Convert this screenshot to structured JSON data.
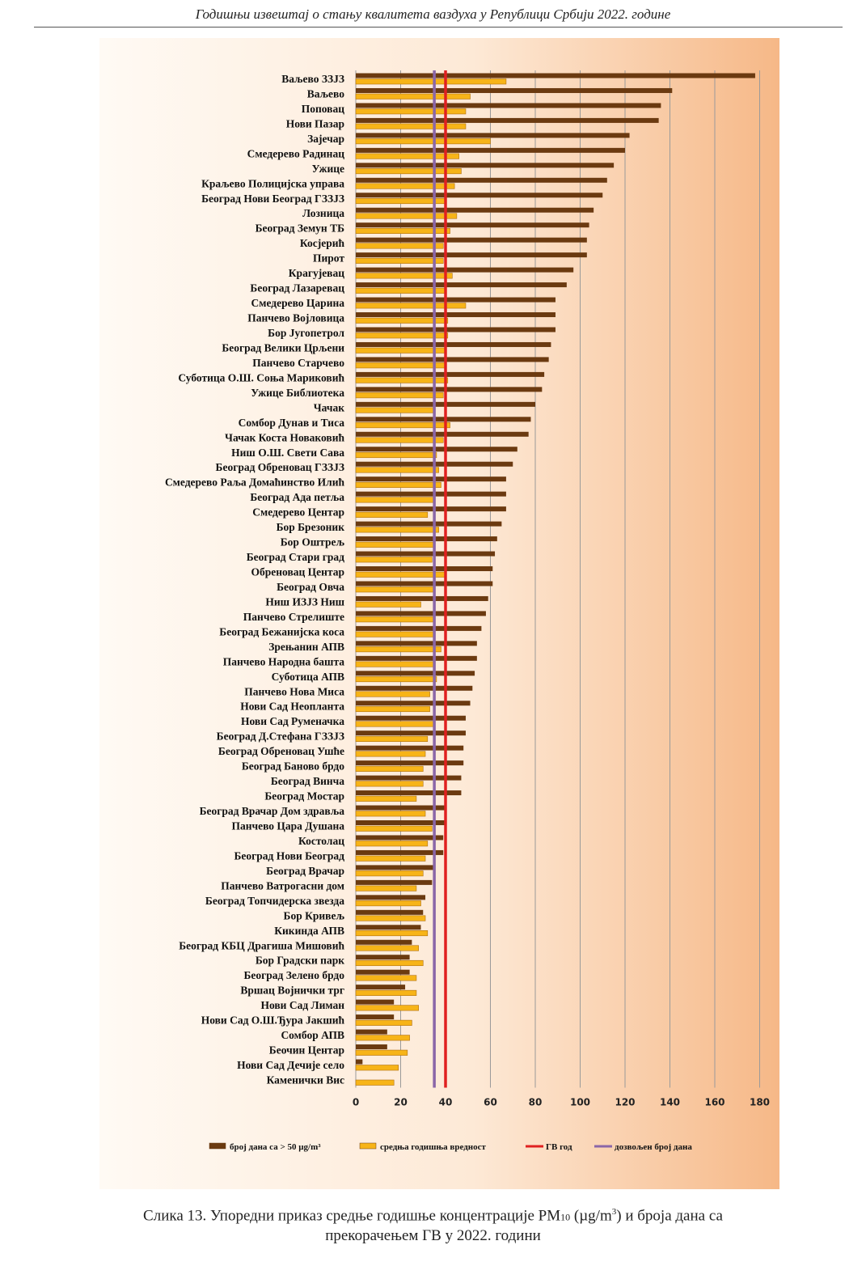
{
  "header": {
    "title": "Годишњи извештај о стању квалитета ваздуха у Републици Србији 2022. године"
  },
  "caption": {
    "part1": "Слика 13. Упоредни приказ средње годишње концентрације PM",
    "sub": "10",
    "part2": " (µg/m",
    "sup": "3",
    "part3": ") и броја дана са",
    "line2": "прекорачењем ГВ у 2022. години"
  },
  "chart_data": {
    "type": "bar",
    "orientation": "horizontal",
    "xlim": [
      0,
      180
    ],
    "xticks": [
      0,
      20,
      40,
      60,
      80,
      100,
      120,
      140,
      160,
      180
    ],
    "grid": true,
    "legend_position": "bottom",
    "categories": [
      "Ваљево ЗЗЈЗ",
      "Ваљево",
      "Поповац",
      "Нови Пазар",
      "Зајечар",
      "Смедерево Радинац",
      "Ужице",
      "Краљево Полицијска управа",
      "Београд Нови Београд ГЗЗЈЗ",
      "Лозница",
      "Београд Земун ТБ",
      "Косјерић",
      "Пирот",
      "Крагујевац",
      "Београд Лазаревац",
      "Смедерево Царина",
      "Панчево Војловица",
      "Бор Југопетрол",
      "Београд Велики Црљени",
      "Панчево Старчево",
      "Суботица О.Ш. Соња Мариковић",
      "Ужице Библиотека",
      "Чачак",
      "Сомбор Дунав и Тиса",
      "Чачак Коста Новаковић",
      "Ниш О.Ш. Свети Сава",
      "Београд Обреновац ГЗЗЈЗ",
      "Смедерево Раља Домаћинство Илић",
      "Београд Ада петља",
      "Смедерево Центар",
      "Бор Брезоник",
      "Бор Оштрељ",
      "Београд Стари град",
      "Обреновац Центар",
      "Београд Овча",
      "Ниш ИЗЈЗ Ниш",
      "Панчево Стрелиште",
      "Београд Бежанијска коса",
      "Зрењанин АПВ",
      "Панчево Народна башта",
      "Суботица АПВ",
      "Панчево Нова Миса",
      "Нови Сад Неопланта",
      "Нови Сад Руменачка",
      "Београд  Д.Стефана ГЗЗЈЗ",
      "Београд Обреновац Ушће",
      "Београд Баново брдо",
      "Београд Винча",
      "Београд Мостар",
      "Београд Врачар Дом здравља",
      "Панчево Цара Душана",
      "Костолац",
      "Београд Нови Београд",
      "Београд Врачар",
      "Панчево Ватрогасни дом",
      "Београд Топчидерска звезда",
      "Бор Кривељ",
      "Кикинда АПВ",
      "Београд КБЦ Драгиша Мишовић",
      "Бор Градски парк",
      "Београд Зелено брдо",
      "Вршац Војнички трг",
      "Нови Сад Лиман",
      "Нови Сад О.Ш.Ђура Јакшић",
      "Сомбор АПВ",
      "Беочин Центар",
      "Нови Сад Дечије село",
      "Каменички Вис"
    ],
    "series": [
      {
        "name": "број дана са  > 50 µg/m³",
        "color": "#6b3a10",
        "values": [
          178,
          141,
          136,
          135,
          122,
          120,
          115,
          112,
          110,
          106,
          104,
          103,
          103,
          97,
          94,
          89,
          89,
          89,
          87,
          86,
          84,
          83,
          80,
          78,
          77,
          72,
          70,
          67,
          67,
          67,
          65,
          63,
          62,
          61,
          61,
          59,
          58,
          56,
          54,
          54,
          53,
          52,
          51,
          49,
          49,
          48,
          48,
          47,
          47,
          40,
          40,
          39,
          39,
          35,
          34,
          31,
          30,
          29,
          25,
          24,
          24,
          22,
          17,
          17,
          14,
          14,
          3,
          0
        ]
      },
      {
        "name": "средња годишња вредност",
        "color": "#f7b418",
        "values": [
          67,
          51,
          49,
          49,
          60,
          46,
          47,
          44,
          40,
          45,
          42,
          39,
          39,
          43,
          40,
          49,
          41,
          41,
          40,
          40,
          41,
          39,
          35,
          42,
          39,
          36,
          37,
          38,
          35,
          32,
          37,
          35,
          34,
          40,
          35,
          29,
          35,
          35,
          38,
          35,
          36,
          33,
          33,
          35,
          32,
          31,
          30,
          30,
          27,
          31,
          34,
          32,
          31,
          30,
          27,
          29,
          31,
          32,
          28,
          30,
          27,
          27,
          28,
          25,
          24,
          23,
          19,
          17
        ]
      }
    ],
    "reference_lines": [
      {
        "name": "ГВ год",
        "value": 40,
        "color": "#e02020"
      },
      {
        "name": "дозвољен број дана",
        "value": 35,
        "color": "#8a66a8"
      }
    ],
    "legend_labels": [
      "број дана са  > 50 µg/m³",
      "средња годишња вредност",
      "ГВ год",
      "дозвољен број дана"
    ]
  }
}
